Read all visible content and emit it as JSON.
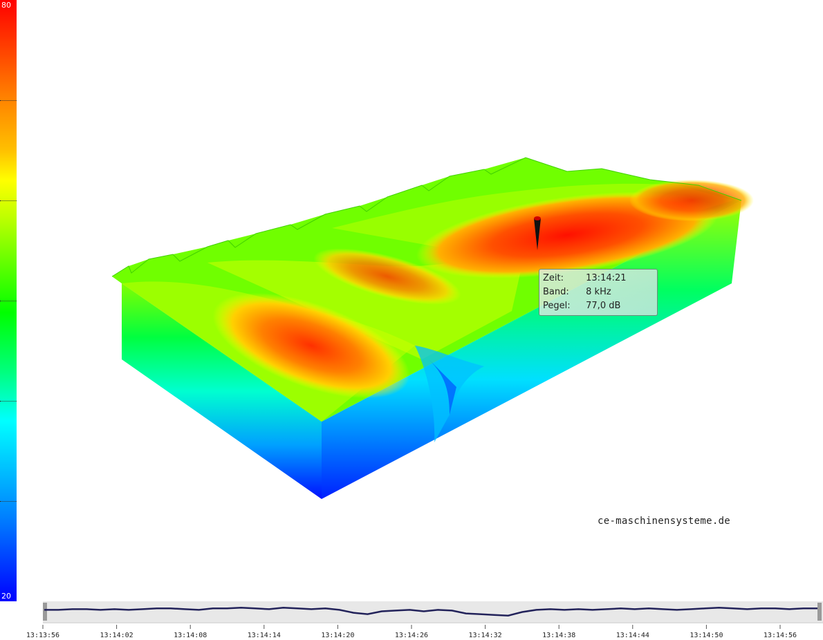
{
  "colorbar": {
    "max_label": "80",
    "min_label": "20",
    "min": 20,
    "max": 80
  },
  "tooltip": {
    "zeit_key": "Zeit:",
    "zeit_val": "13:14:21",
    "band_key": "Band:",
    "band_val": "8 kHz",
    "pegel_key": "Pegel:",
    "pegel_val": "77,0 dB"
  },
  "watermark": "ce-maschinensysteme.de",
  "chart_data": {
    "type": "heatmap",
    "colormap": [
      "#0000ff",
      "#00ffff",
      "#00ff00",
      "#ffff00",
      "#ff0000"
    ],
    "zlim": [
      20,
      80
    ],
    "surface_rows": [
      [
        62,
        64,
        60,
        66,
        63,
        61,
        65,
        68,
        62,
        60,
        64,
        63
      ],
      [
        64,
        66,
        62,
        68,
        64,
        63,
        67,
        70,
        64,
        62,
        66,
        65
      ],
      [
        66,
        68,
        64,
        70,
        66,
        65,
        69,
        72,
        67,
        64,
        68,
        67
      ],
      [
        68,
        70,
        66,
        72,
        68,
        67,
        72,
        76,
        70,
        66,
        70,
        70
      ],
      [
        70,
        72,
        68,
        74,
        70,
        69,
        74,
        77,
        73,
        68,
        72,
        72
      ],
      [
        72,
        74,
        70,
        73,
        71,
        70,
        75,
        76,
        74,
        70,
        73,
        74
      ],
      [
        74,
        76,
        72,
        70,
        72,
        71,
        76,
        75,
        74,
        72,
        75,
        75
      ],
      [
        76,
        77,
        74,
        66,
        70,
        72,
        74,
        73,
        72,
        74,
        76,
        74
      ]
    ],
    "timeline": {
      "tick_labels": [
        "13:13:56",
        "13:14:02",
        "13:14:08",
        "13:14:14",
        "13:14:20",
        "13:14:26",
        "13:14:32",
        "13:14:38",
        "13:14:44",
        "13:14:50",
        "13:14:56"
      ],
      "level_trace": [
        70,
        70,
        71,
        71,
        70,
        71,
        70,
        71,
        72,
        72,
        71,
        70,
        72,
        72,
        73,
        72,
        71,
        73,
        72,
        71,
        72,
        70,
        66,
        64,
        68,
        69,
        70,
        68,
        70,
        69,
        65,
        64,
        63,
        62,
        67,
        70,
        71,
        70,
        71,
        70,
        71,
        72,
        71,
        72,
        71,
        70,
        71,
        72,
        73,
        72,
        71,
        72,
        72,
        71,
        72,
        72
      ]
    }
  }
}
